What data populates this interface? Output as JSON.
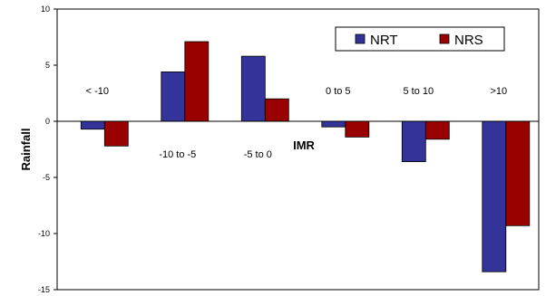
{
  "chart_data": {
    "type": "bar",
    "categories": [
      "< -10",
      "-10 to -5",
      "-5 to 0",
      "0 to 5",
      "5 to 10",
      ">10"
    ],
    "series": [
      {
        "name": "NRT",
        "color": "#333399",
        "values": [
          -0.7,
          4.4,
          5.8,
          -0.5,
          -3.6,
          -13.4
        ]
      },
      {
        "name": "NRS",
        "color": "#990000",
        "values": [
          -2.2,
          7.1,
          2.0,
          -1.4,
          -1.6,
          -9.3
        ]
      }
    ],
    "xlabel": "IMR",
    "ylabel": "Rainfall",
    "ylim": [
      -15,
      10
    ],
    "yticks": [
      10,
      5,
      0,
      -5,
      -10,
      -15
    ],
    "grid": false,
    "legend": "top-right"
  }
}
